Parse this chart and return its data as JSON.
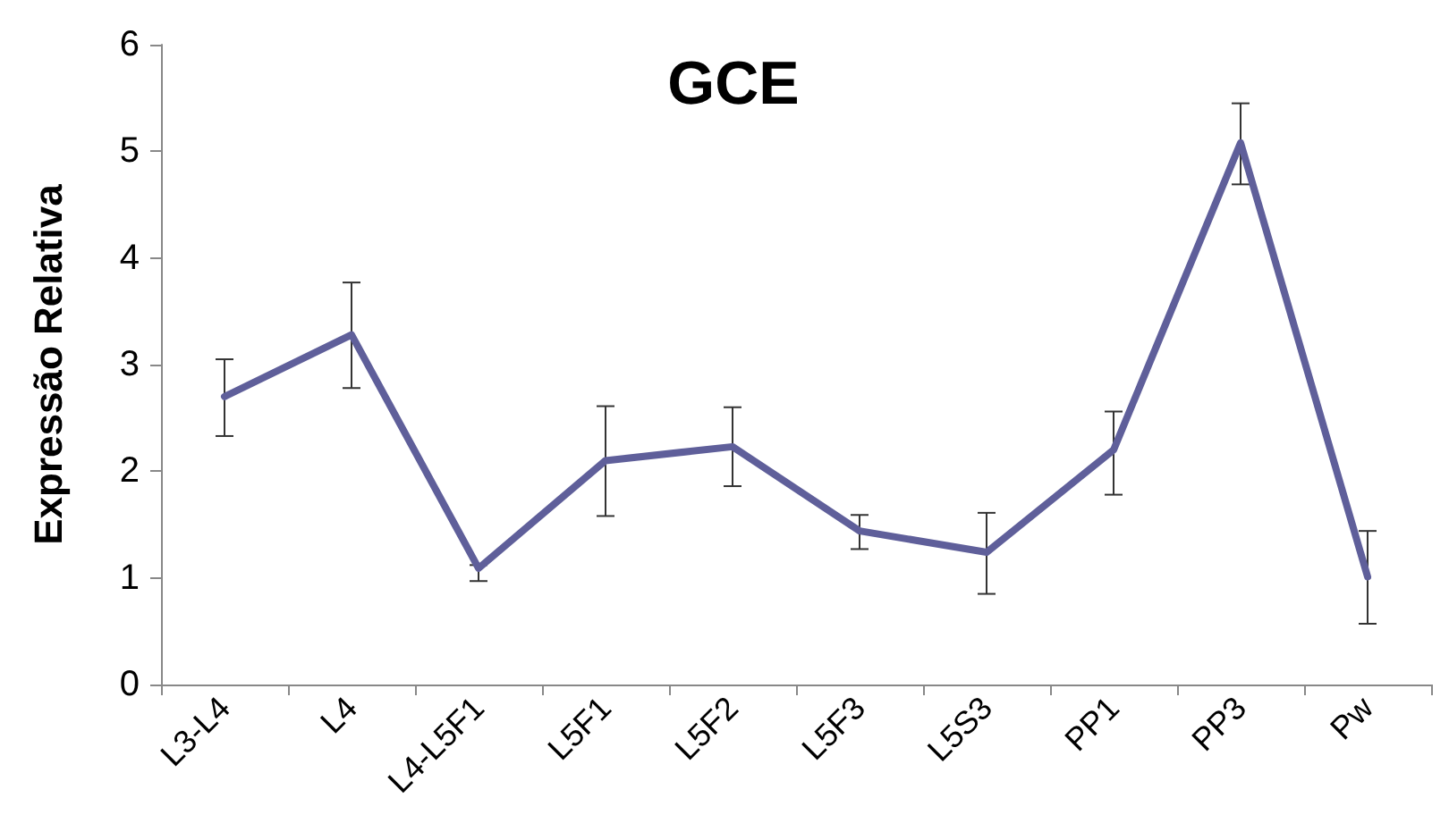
{
  "chart_data": {
    "type": "line",
    "title": "GCE",
    "ylabel": "Expressão Relativa",
    "categories": [
      "L3-L4",
      "L4",
      "L4-L5F1",
      "L5F1",
      "L5F2",
      "L5F3",
      "L5S3",
      "PP1",
      "PP3",
      "Pw"
    ],
    "series": [
      {
        "color": "#5f5f9a",
        "values": [
          2.7,
          3.28,
          1.09,
          2.1,
          2.23,
          1.44,
          1.24,
          2.2,
          5.08,
          1.01
        ],
        "errors": [
          [
            2.33,
            3.05
          ],
          [
            2.78,
            3.77
          ],
          [
            0.97,
            1.12
          ],
          [
            1.58,
            2.61
          ],
          [
            1.86,
            2.6
          ],
          [
            1.27,
            1.59
          ],
          [
            0.85,
            1.61
          ],
          [
            1.78,
            2.56
          ],
          [
            4.69,
            5.45
          ],
          [
            0.57,
            1.44
          ]
        ]
      }
    ],
    "ylim": [
      0,
      6
    ],
    "yticks": [
      0,
      1,
      2,
      3,
      4,
      5,
      6
    ],
    "grid": false,
    "marker": "none",
    "line_style": "solid"
  }
}
